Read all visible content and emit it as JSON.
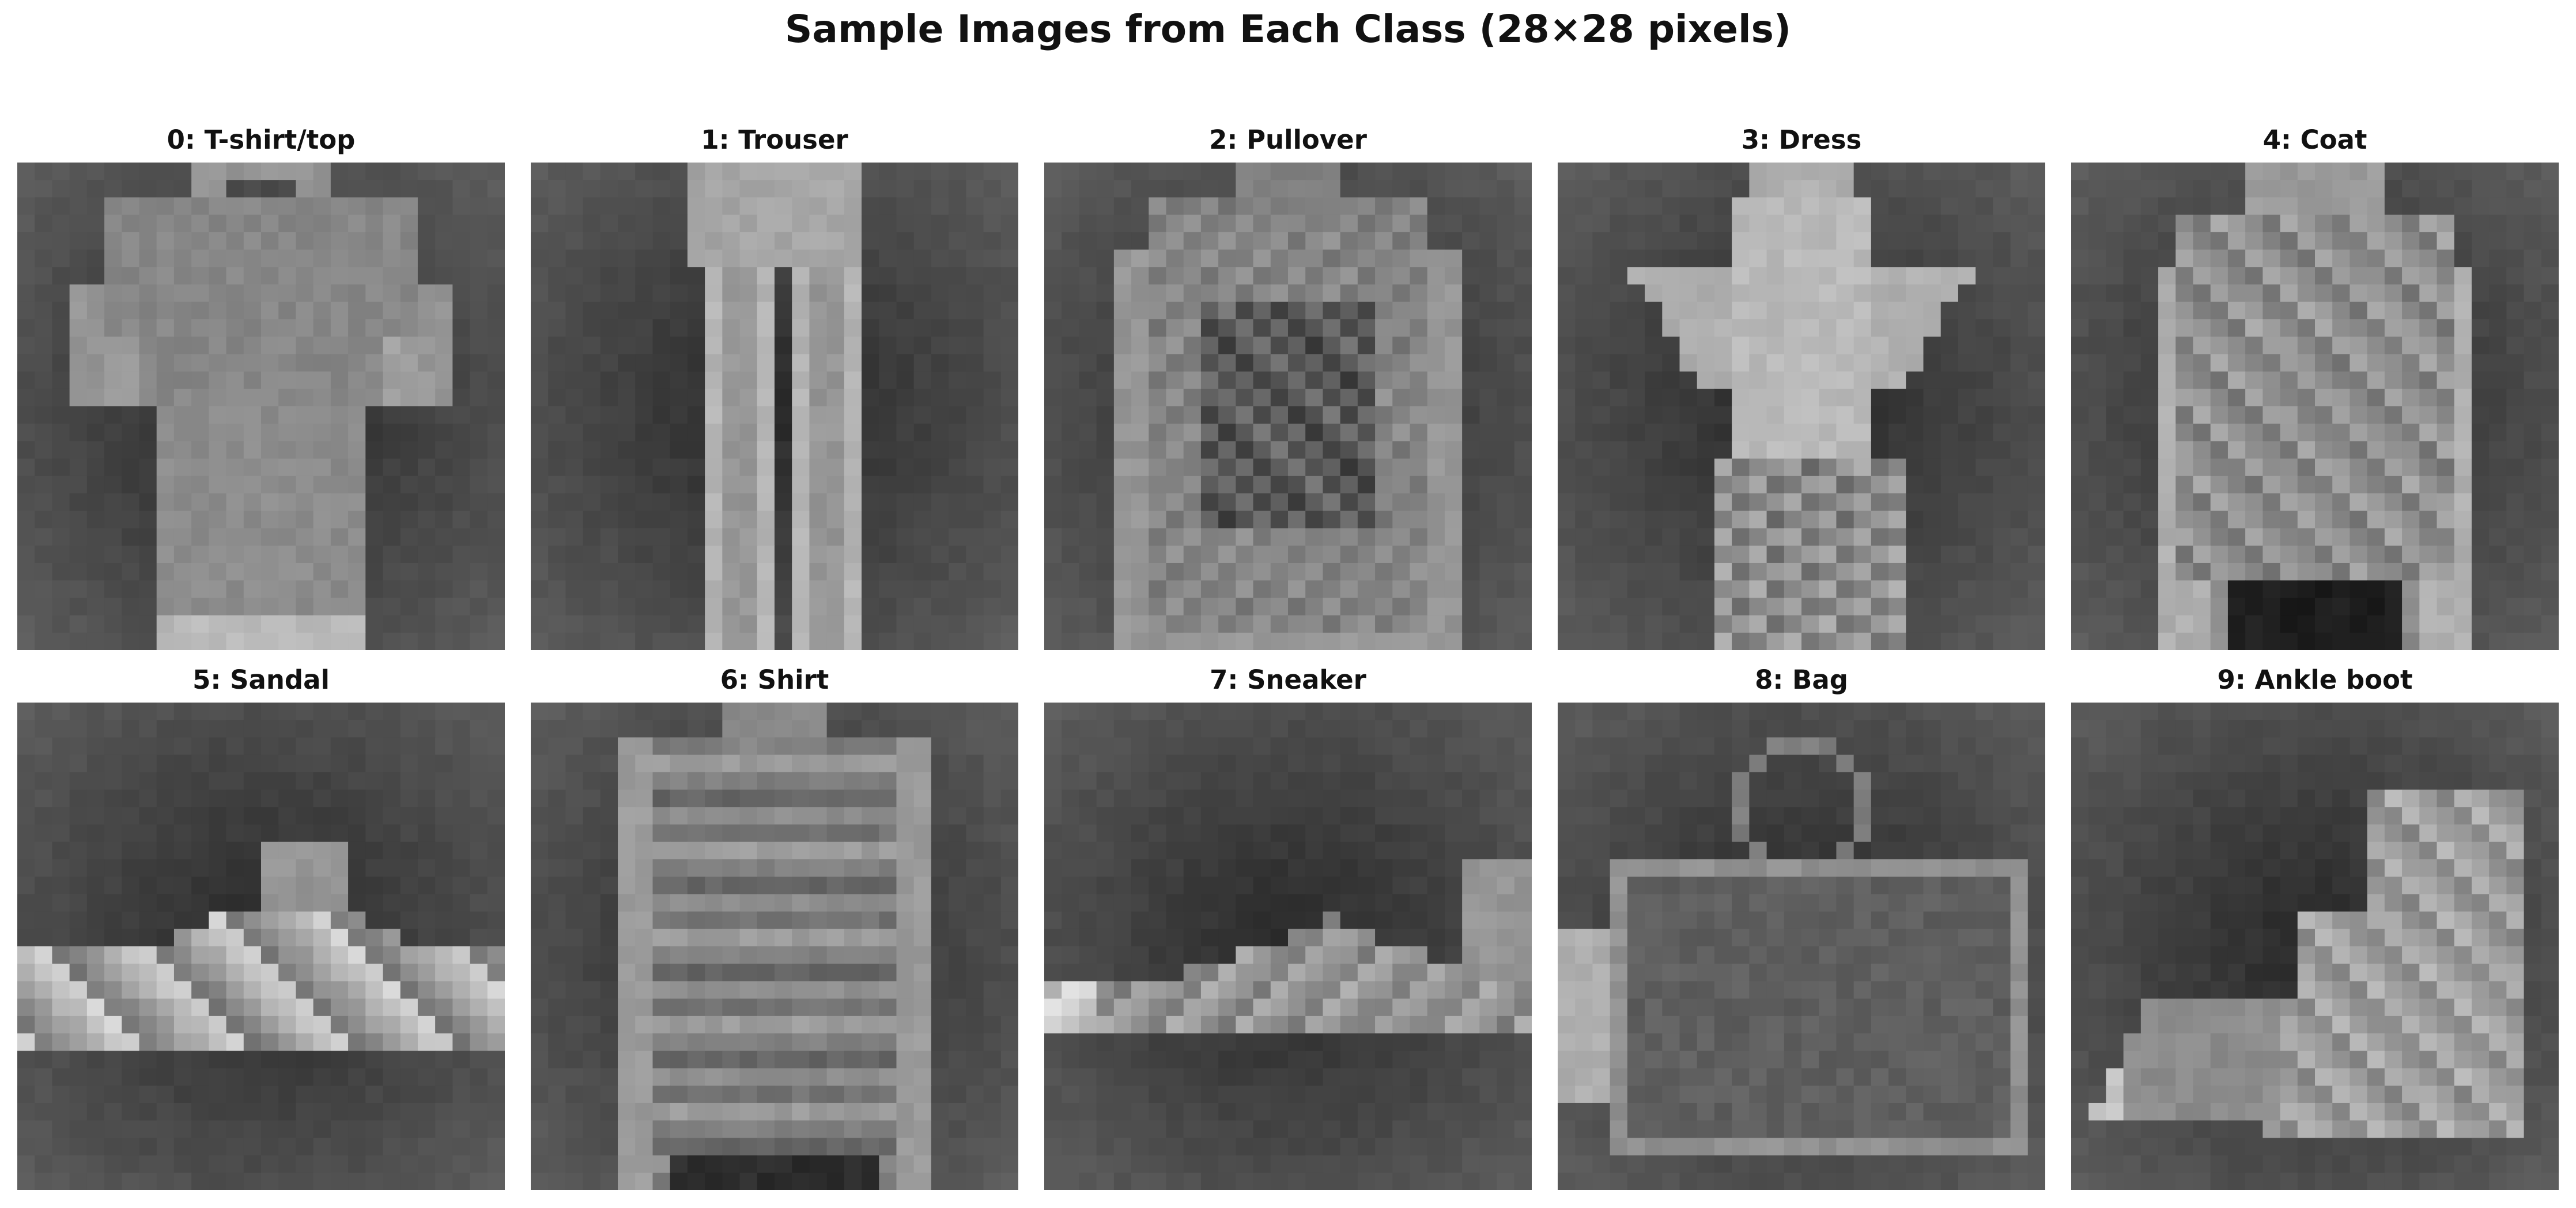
{
  "figure": {
    "title": "Sample Images from Each Class (28×28 pixels)"
  },
  "panels": [
    {
      "title": "0: T-shirt/top",
      "shape": "tshirt"
    },
    {
      "title": "1: Trouser",
      "shape": "trouser"
    },
    {
      "title": "2: Pullover",
      "shape": "pullover"
    },
    {
      "title": "3: Dress",
      "shape": "dress"
    },
    {
      "title": "4: Coat",
      "shape": "coat"
    },
    {
      "title": "5: Sandal",
      "shape": "sandal"
    },
    {
      "title": "6: Shirt",
      "shape": "shirt"
    },
    {
      "title": "7: Sneaker",
      "shape": "sneaker"
    },
    {
      "title": "8: Bag",
      "shape": "bag"
    },
    {
      "title": "9: Ankle boot",
      "shape": "boot"
    }
  ]
}
